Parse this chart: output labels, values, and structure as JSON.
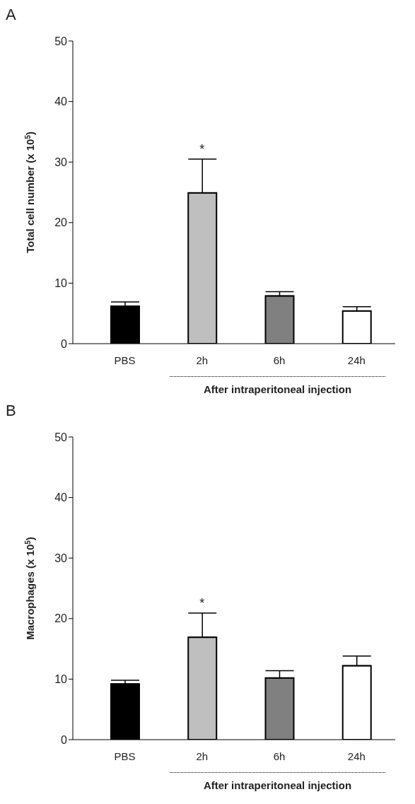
{
  "chart_data": [
    {
      "type": "bar",
      "title": "A",
      "ylabel": "Total cell number (x 10$^{5}$)",
      "xlabel": "After intraperitoneal injection",
      "categories": [
        "PBS",
        "2h",
        "6h",
        "24h"
      ],
      "values": [
        6.2,
        24.9,
        7.9,
        5.4
      ],
      "errors": [
        [
          6.2,
          6.9
        ],
        [
          24.9,
          30.5
        ],
        [
          7.9,
          8.6
        ],
        [
          5.4,
          6.1
        ]
      ],
      "colors": [
        "#000000",
        "#bfbfbf",
        "#808080",
        "#ffffff"
      ],
      "ylim": [
        0,
        50
      ],
      "yticks": [
        0,
        10,
        20,
        30,
        40,
        50
      ],
      "grid": false,
      "legend": false,
      "annotations": [
        "*"
      ]
    },
    {
      "type": "bar",
      "title": "B",
      "ylabel": "Macrophages (x 10$^{5}$)",
      "xlabel": "After intraperitoneal injection",
      "categories": [
        "PBS",
        "2h",
        "6h",
        "24h"
      ],
      "values": [
        9.2,
        16.9,
        10.2,
        12.2
      ],
      "errors": [
        [
          9.2,
          9.8
        ],
        [
          16.9,
          20.9
        ],
        [
          10.2,
          11.4
        ],
        [
          12.2,
          13.8
        ]
      ],
      "colors": [
        "#000000",
        "#bfbfbf",
        "#808080",
        "#ffffff"
      ],
      "ylim": [
        0,
        50
      ],
      "yticks": [
        0,
        10,
        20,
        30,
        40,
        50
      ],
      "grid": false,
      "legend": false,
      "annotations": [
        "*"
      ]
    }
  ]
}
